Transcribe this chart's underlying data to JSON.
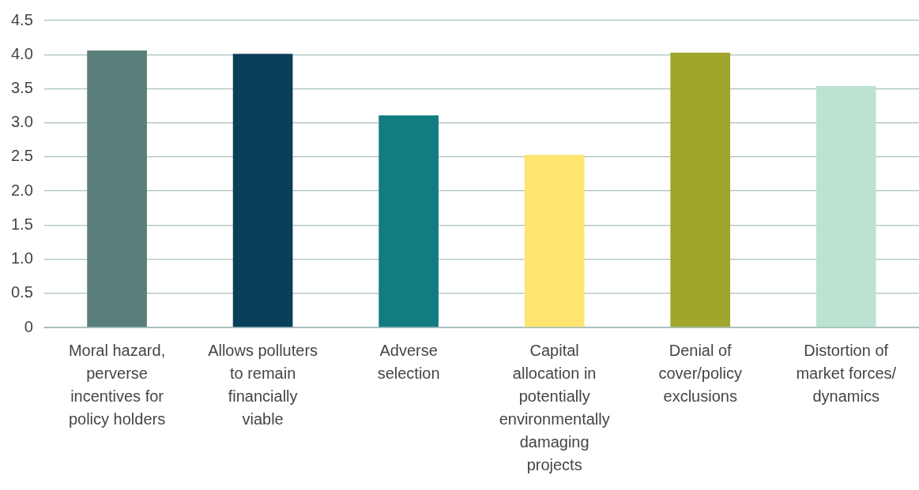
{
  "chart_data": {
    "type": "bar",
    "categories": [
      "Moral hazard, perverse incentives for policy holders",
      "Allows polluters to remain financially viable",
      "Adverse selection",
      "Capital allocation in potentially environmentally damaging projects",
      "Denial of cover/policy exclusions",
      "Distortion of market forces/ dynamics"
    ],
    "values": [
      4.06,
      4.01,
      3.11,
      2.53,
      4.03,
      3.54
    ],
    "colors": [
      "#5a7e7a",
      "#0a3f5a",
      "#137b82",
      "#fde56f",
      "#a0a52c",
      "#bce3d2"
    ],
    "ylim": [
      0,
      4.5
    ],
    "yticks": [
      {
        "value": 0,
        "label": "0"
      },
      {
        "value": 0.5,
        "label": "0.5"
      },
      {
        "value": 1,
        "label": "1.0"
      },
      {
        "value": 1.5,
        "label": "1.5"
      },
      {
        "value": 2,
        "label": "2.0"
      },
      {
        "value": 2.5,
        "label": "2.5"
      },
      {
        "value": 3,
        "label": "3.0"
      },
      {
        "value": 3.5,
        "label": "3.5"
      },
      {
        "value": 4,
        "label": "4.0"
      },
      {
        "value": 4.5,
        "label": "4.5"
      }
    ],
    "grid": "y",
    "legend": false
  }
}
